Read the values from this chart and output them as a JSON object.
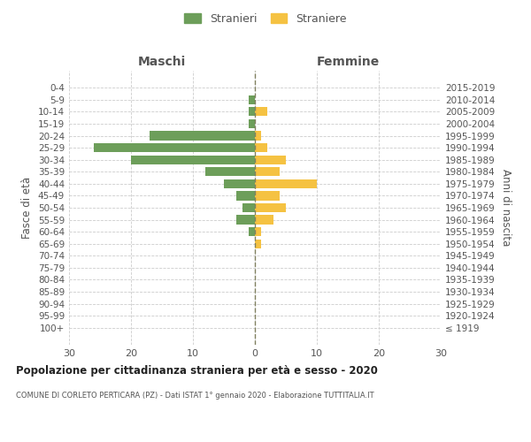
{
  "age_groups": [
    "100+",
    "95-99",
    "90-94",
    "85-89",
    "80-84",
    "75-79",
    "70-74",
    "65-69",
    "60-64",
    "55-59",
    "50-54",
    "45-49",
    "40-44",
    "35-39",
    "30-34",
    "25-29",
    "20-24",
    "15-19",
    "10-14",
    "5-9",
    "0-4"
  ],
  "birth_years": [
    "≤ 1919",
    "1920-1924",
    "1925-1929",
    "1930-1934",
    "1935-1939",
    "1940-1944",
    "1945-1949",
    "1950-1954",
    "1955-1959",
    "1960-1964",
    "1965-1969",
    "1970-1974",
    "1975-1979",
    "1980-1984",
    "1985-1989",
    "1990-1994",
    "1995-1999",
    "2000-2004",
    "2005-2009",
    "2010-2014",
    "2015-2019"
  ],
  "males": [
    0,
    0,
    0,
    0,
    0,
    0,
    0,
    0,
    1,
    3,
    2,
    3,
    5,
    8,
    20,
    26,
    17,
    1,
    1,
    1,
    0
  ],
  "females": [
    0,
    0,
    0,
    0,
    0,
    0,
    0,
    1,
    1,
    3,
    5,
    4,
    10,
    4,
    5,
    2,
    1,
    0,
    2,
    0,
    0
  ],
  "male_color": "#6d9e5a",
  "female_color": "#f5c242",
  "background_color": "#ffffff",
  "grid_color": "#cccccc",
  "center_line_color": "#808060",
  "title": "Popolazione per cittadinanza straniera per età e sesso - 2020",
  "subtitle": "COMUNE DI CORLETO PERTICARA (PZ) - Dati ISTAT 1° gennaio 2020 - Elaborazione TUTTITALIA.IT",
  "ylabel_left": "Fasce di età",
  "ylabel_right": "Anni di nascita",
  "header_left": "Maschi",
  "header_right": "Femmine",
  "legend_males": "Stranieri",
  "legend_females": "Straniere",
  "xlim": 30,
  "bar_height": 0.75
}
